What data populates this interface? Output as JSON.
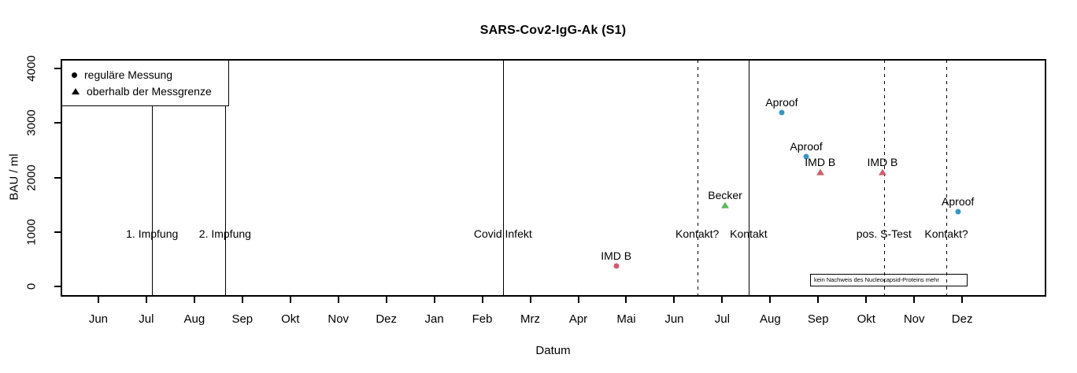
{
  "chart_data": {
    "type": "scatter",
    "title": "SARS-Cov2-IgG-Ak (S1)",
    "xlabel": "Datum",
    "ylabel": "BAU / ml",
    "x_axis": {
      "ticks": [
        "Jun",
        "Jul",
        "Aug",
        "Sep",
        "Okt",
        "Nov",
        "Dez",
        "Jan",
        "Feb",
        "Mrz",
        "Apr",
        "Mai",
        "Jun",
        "Jul",
        "Aug",
        "Sep",
        "Okt",
        "Nov",
        "Dez"
      ]
    },
    "y_axis": {
      "ticks": [
        0,
        1000,
        2000,
        3000,
        4000
      ],
      "range": [
        0,
        4000
      ],
      "grid": false
    },
    "legend": {
      "position": "top-left",
      "items": [
        {
          "marker": "circle",
          "label": "reguläre Messung"
        },
        {
          "marker": "triangle",
          "label": "oberhalb der Messgrenze"
        }
      ]
    },
    "event_label_value": 970,
    "events": [
      {
        "label": "1. Impfung",
        "x": 1.12,
        "style": "solid"
      },
      {
        "label": "2. Impfung",
        "x": 2.64,
        "style": "solid"
      },
      {
        "label": "Covid Infekt",
        "x": 8.43,
        "style": "solid"
      },
      {
        "label": "Kontakt?",
        "x": 12.48,
        "style": "dashed"
      },
      {
        "label": "Kontakt",
        "x": 13.55,
        "style": "solid"
      },
      {
        "label": "pos. S-Test",
        "x": 16.37,
        "style": "dashed"
      },
      {
        "label": "Kontakt?",
        "x": 17.67,
        "style": "dashed"
      }
    ],
    "points": [
      {
        "label": "IMD B",
        "marker": "circle",
        "color": "#cd5f6d",
        "x": 10.79,
        "value": 370
      },
      {
        "label": "Becker",
        "marker": "triangle",
        "color": "#5cb85c",
        "x": 13.06,
        "value": 1490
      },
      {
        "label": "Aproof",
        "marker": "circle",
        "color": "#3596c8",
        "x": 14.24,
        "value": 3190
      },
      {
        "label": "Aproof",
        "marker": "circle",
        "color": "#3596c8",
        "x": 14.75,
        "value": 2380
      },
      {
        "label": "IMD B",
        "marker": "triangle",
        "color": "#cd5f6d",
        "x": 15.04,
        "value": 2090
      },
      {
        "label": "IMD B",
        "marker": "triangle",
        "color": "#cd5f6d",
        "x": 16.34,
        "value": 2090
      },
      {
        "label": "Aproof",
        "marker": "circle",
        "color": "#3596c8",
        "x": 17.91,
        "value": 1370
      }
    ],
    "annotation": {
      "text": "kein Nachweis des Nucleocapsid-Proteins mehr"
    },
    "colors": {
      "axis": "#000000",
      "aproof": "#3596c8",
      "imd_b": "#cd5f6d",
      "becker": "#5cb85c"
    }
  }
}
